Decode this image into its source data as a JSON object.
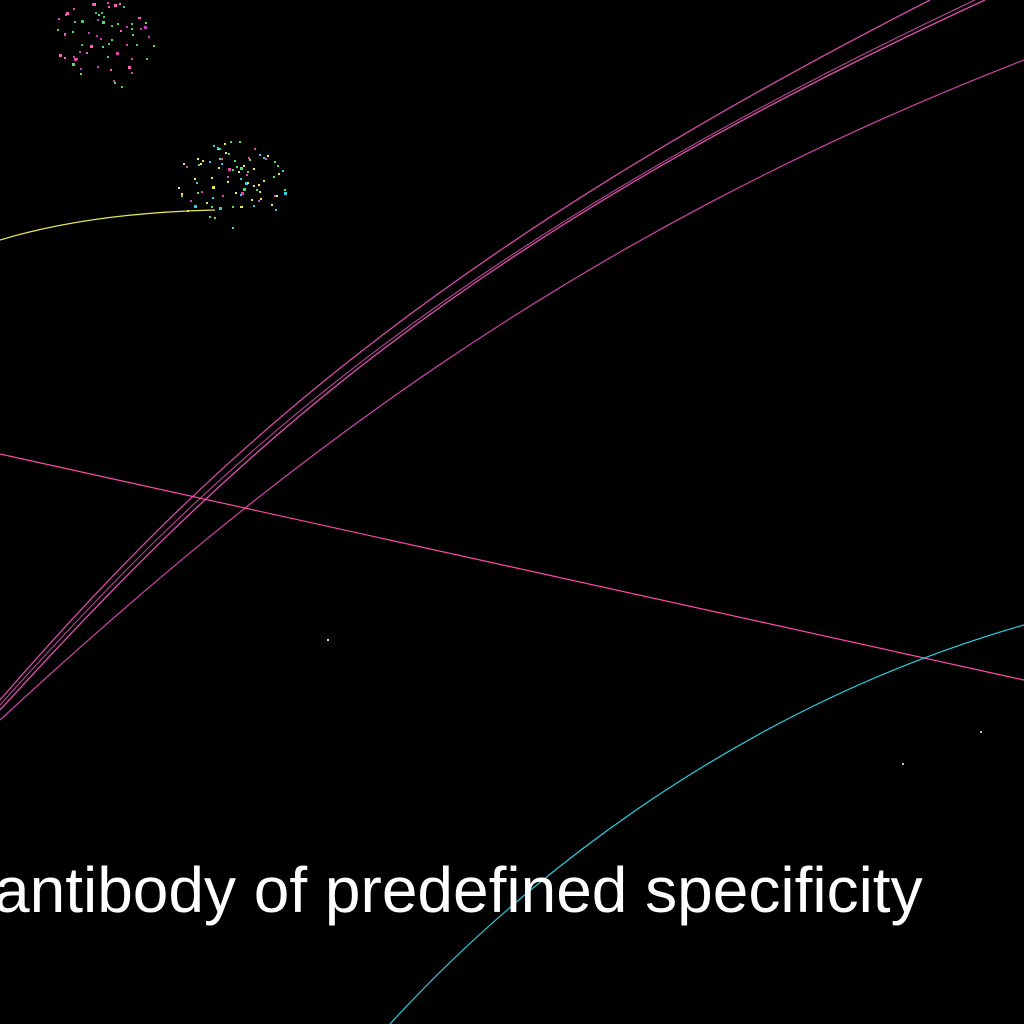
{
  "caption": "antibody of predefined specificity",
  "colors": {
    "background": "#000000",
    "caption": "#ffffff",
    "magenta_curves": "#e040b0",
    "pink_line": "#ff4aa8",
    "cyan_curve": "#2ad0e0",
    "yellow_curve": "#e8e850"
  }
}
